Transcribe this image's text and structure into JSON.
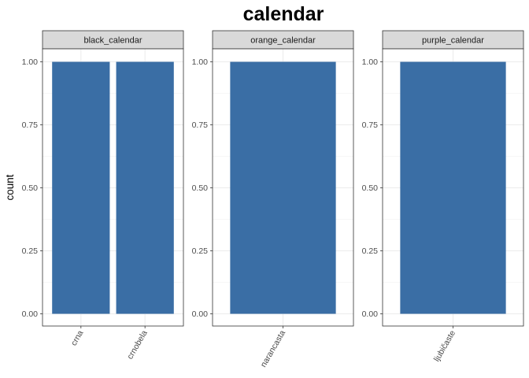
{
  "chart_data": {
    "type": "bar",
    "title": "calendar",
    "xlabel": "",
    "ylabel": "count",
    "ylim": [
      0,
      1.0
    ],
    "yticks": [
      "0.00",
      "0.25",
      "0.50",
      "0.75",
      "1.00"
    ],
    "bar_color": "#3a6ea5",
    "strip_color": "#d9d9d9",
    "grid": true,
    "x_tick_rotation_deg": -60,
    "panels": [
      {
        "name": "black_calendar",
        "categories": [
          "crna",
          "crnobela"
        ],
        "values": [
          1,
          1
        ]
      },
      {
        "name": "orange_calendar",
        "categories": [
          "narancasta"
        ],
        "values": [
          1
        ]
      },
      {
        "name": "purple_calendar",
        "categories": [
          "ljubičaste"
        ],
        "values": [
          1
        ]
      }
    ]
  }
}
